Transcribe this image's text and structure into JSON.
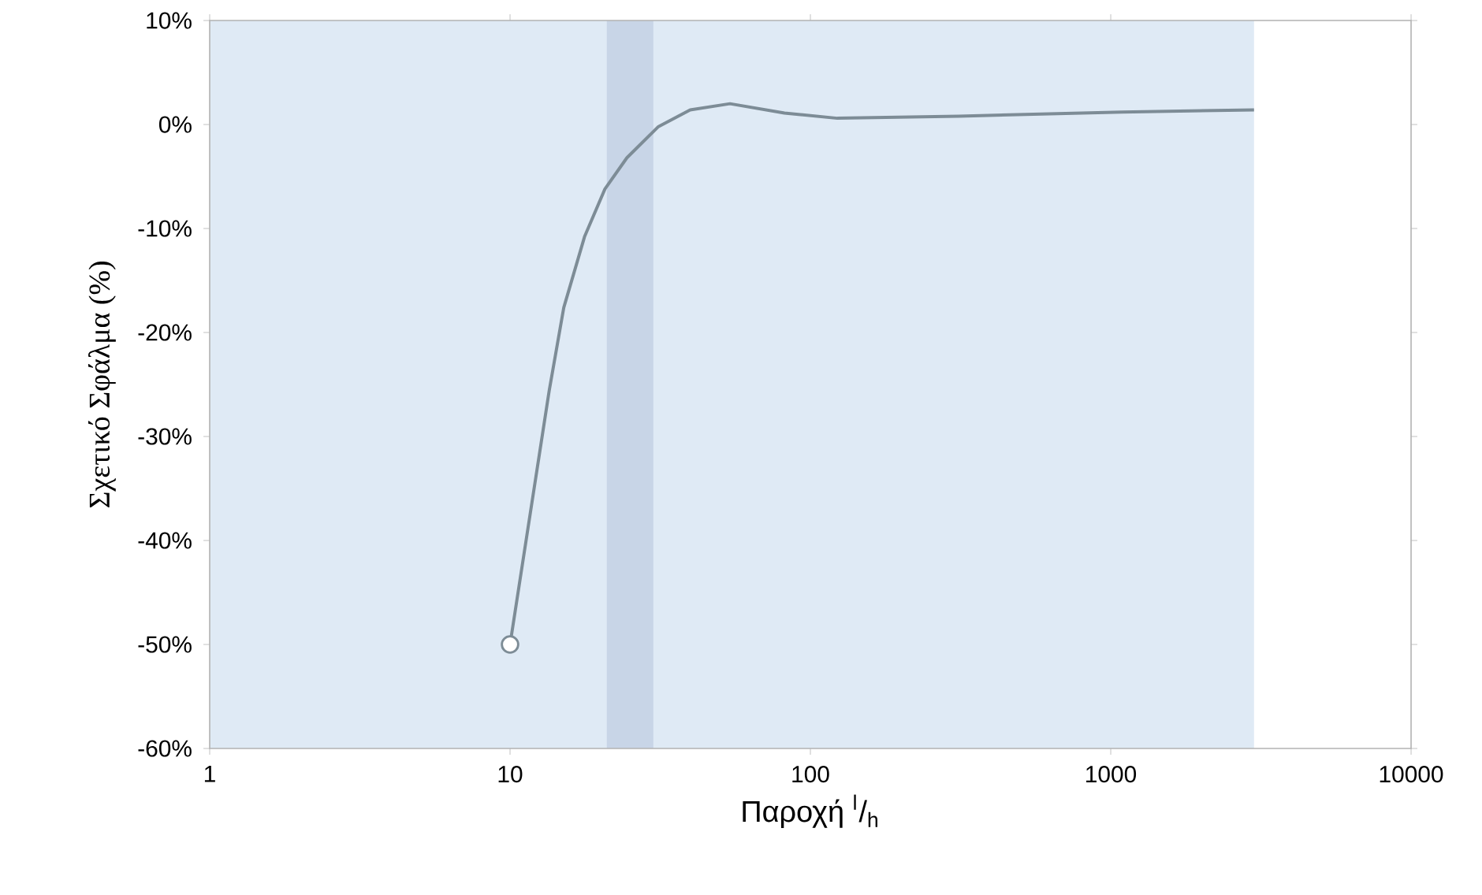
{
  "chart_data": {
    "type": "line",
    "xlabel": "Παροχή $^{l}$/$_{h}$",
    "ylabel": "Σχετικό Σφάλμα (%)",
    "log": "x",
    "xlim": [
      1,
      10000
    ],
    "xticks": [
      1,
      10,
      100,
      1000,
      10000
    ],
    "ylim": [
      -60,
      10
    ],
    "yticks": [
      {
        "value": 10,
        "label": "10%"
      },
      {
        "value": 0,
        "label": "0%"
      },
      {
        "value": -10,
        "label": "-10%"
      },
      {
        "value": -20,
        "label": "-20%"
      },
      {
        "value": -30,
        "label": "-30%"
      },
      {
        "value": -40,
        "label": "-40%"
      },
      {
        "value": -50,
        "label": "-50%"
      },
      {
        "value": -60,
        "label": "-60%"
      }
    ],
    "bands": [
      {
        "axis": "x",
        "from": 1,
        "to": 3000,
        "color": "#dfeaf5"
      },
      {
        "axis": "x",
        "from": 21,
        "to": 30,
        "color": "#c8d5e7"
      }
    ],
    "series": [
      {
        "color": "#7d8c96",
        "x": [
          10,
          13.5,
          15.1,
          17.7,
          20.7,
          24.5,
          31.2,
          39.8,
          54,
          82,
          123,
          312,
          1090,
          3000
        ],
        "values": [
          -50,
          -25.6,
          -17.6,
          -10.8,
          -6.2,
          -3.2,
          -0.2,
          1.4,
          2.0,
          1.1,
          0.6,
          0.8,
          1.2,
          1.4
        ]
      },
      {
        "type": "scatter",
        "marker": "circle",
        "color": "#7d8c96",
        "x": [
          10
        ],
        "values": [
          -50
        ]
      }
    ]
  }
}
